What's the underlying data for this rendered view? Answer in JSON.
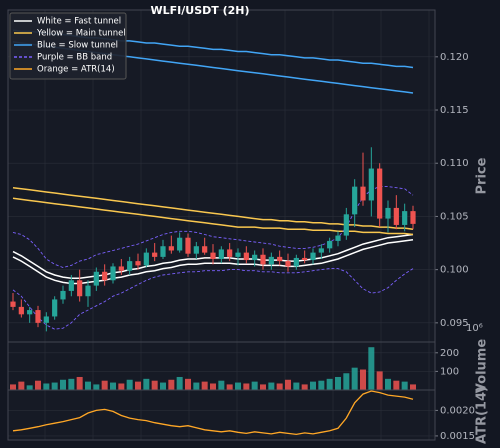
{
  "chart_data": [
    {
      "type": "candlestick",
      "title": "WLFI/USDT (2H)",
      "y_label": "Price",
      "grid": true,
      "legend": "upper left",
      "up_color": "#26a69a",
      "down_color": "#ef5350",
      "ylim": [
        0.0932,
        0.1244
      ],
      "yticks": [
        0.095,
        {
          "value": 0.1,
          "label": "0.100"
        },
        0.105,
        {
          "value": 0.11,
          "label": "0.110"
        },
        0.115,
        {
          "value": 0.12,
          "label": "0.120"
        }
      ],
      "open": [
        0.097,
        0.0965,
        0.0958,
        0.0962,
        0.095,
        0.0956,
        0.0972,
        0.098,
        0.099,
        0.0975,
        0.0985,
        0.0998,
        0.099,
        0.1003,
        0.0999,
        0.1008,
        0.1004,
        0.1016,
        0.1012,
        0.1022,
        0.1018,
        0.103,
        0.1015,
        0.1022,
        0.1016,
        0.101,
        0.1019,
        0.1012,
        0.1016,
        0.1009,
        0.1014,
        0.1005,
        0.1012,
        0.1008,
        0.1003,
        0.1011,
        0.1009,
        0.1016,
        0.102,
        0.1027,
        0.1032,
        0.1052,
        0.1078,
        0.1065,
        0.1095,
        0.1048,
        0.1058,
        0.1042,
        0.1055
      ],
      "high": [
        0.0978,
        0.0972,
        0.0965,
        0.0966,
        0.096,
        0.0975,
        0.0985,
        0.0995,
        0.1,
        0.099,
        0.1002,
        0.1005,
        0.1006,
        0.101,
        0.1012,
        0.1015,
        0.102,
        0.1025,
        0.1028,
        0.1032,
        0.1035,
        0.1034,
        0.1026,
        0.103,
        0.1024,
        0.1022,
        0.1025,
        0.102,
        0.1022,
        0.1018,
        0.102,
        0.1016,
        0.1018,
        0.1015,
        0.1014,
        0.1018,
        0.102,
        0.1024,
        0.103,
        0.1036,
        0.1058,
        0.1085,
        0.111,
        0.1115,
        0.11,
        0.1065,
        0.107,
        0.1062,
        0.106
      ],
      "low": [
        0.0962,
        0.0955,
        0.095,
        0.0946,
        0.0942,
        0.0953,
        0.0968,
        0.0975,
        0.097,
        0.0965,
        0.098,
        0.0985,
        0.0987,
        0.0995,
        0.0995,
        0.1,
        0.1002,
        0.1008,
        0.101,
        0.1015,
        0.1016,
        0.1012,
        0.101,
        0.1014,
        0.1005,
        0.1006,
        0.1008,
        0.1004,
        0.1006,
        0.1003,
        0.1,
        0.1,
        0.1004,
        0.0998,
        0.1,
        0.1006,
        0.1005,
        0.101,
        0.1016,
        0.1022,
        0.1028,
        0.104,
        0.106,
        0.105,
        0.104,
        0.1035,
        0.1038,
        0.1036,
        0.1038
      ],
      "close": [
        0.0965,
        0.0958,
        0.0962,
        0.095,
        0.0956,
        0.0972,
        0.098,
        0.099,
        0.0975,
        0.0985,
        0.0998,
        0.099,
        0.1003,
        0.0999,
        0.1008,
        0.1004,
        0.1016,
        0.1012,
        0.1022,
        0.1018,
        0.103,
        0.1015,
        0.1022,
        0.1016,
        0.101,
        0.1019,
        0.1012,
        0.1016,
        0.1009,
        0.1014,
        0.1005,
        0.1012,
        0.1008,
        0.1003,
        0.1011,
        0.1009,
        0.1016,
        0.102,
        0.1027,
        0.1032,
        0.1052,
        0.1078,
        0.1065,
        0.1095,
        0.1048,
        0.1058,
        0.1042,
        0.1055,
        0.1043
      ],
      "series": [
        {
          "name": "White = Fast tunnel",
          "color": "#ffffff",
          "dashed": false,
          "upper": [
            0.1017,
            0.1013,
            0.1008,
            0.1003,
            0.0998,
            0.0995,
            0.0993,
            0.0992,
            0.0992,
            0.0993,
            0.0994,
            0.0995,
            0.0997,
            0.0998,
            0.1,
            0.1001,
            0.1003,
            0.1004,
            0.1006,
            0.1007,
            0.1009,
            0.101,
            0.101,
            0.1011,
            0.1011,
            0.1011,
            0.1011,
            0.101,
            0.101,
            0.101,
            0.1009,
            0.1009,
            0.1009,
            0.1008,
            0.1008,
            0.1009,
            0.101,
            0.1011,
            0.1013,
            0.1015,
            0.1018,
            0.1021,
            0.1024,
            0.1026,
            0.1028,
            0.103,
            0.1031,
            0.1032,
            0.1033
          ],
          "lower": [
            0.1012,
            0.1008,
            0.1003,
            0.0998,
            0.0993,
            0.099,
            0.0988,
            0.0987,
            0.0987,
            0.0988,
            0.0989,
            0.099,
            0.0992,
            0.0993,
            0.0995,
            0.0996,
            0.0998,
            0.0999,
            0.1001,
            0.1002,
            0.1004,
            0.1005,
            0.1005,
            0.1006,
            0.1006,
            0.1006,
            0.1006,
            0.1005,
            0.1005,
            0.1005,
            0.1004,
            0.1004,
            0.1004,
            0.1003,
            0.1003,
            0.1004,
            0.1005,
            0.1006,
            0.1008,
            0.101,
            0.1013,
            0.1016,
            0.1019,
            0.1021,
            0.1023,
            0.1025,
            0.1026,
            0.1027,
            0.1028
          ]
        },
        {
          "name": "Yellow = Main tunnel",
          "color": "#f9c74f",
          "dashed": false,
          "upper": [
            0.1077,
            0.1076,
            0.1075,
            0.1074,
            0.1073,
            0.1072,
            0.1071,
            0.107,
            0.1069,
            0.1068,
            0.1067,
            0.1066,
            0.1065,
            0.1064,
            0.1063,
            0.1062,
            0.1061,
            0.106,
            0.1059,
            0.1058,
            0.1057,
            0.1056,
            0.1055,
            0.1054,
            0.1053,
            0.1052,
            0.1051,
            0.105,
            0.1049,
            0.1048,
            0.1047,
            0.1047,
            0.1046,
            0.1046,
            0.1045,
            0.1045,
            0.1044,
            0.1044,
            0.1043,
            0.1043,
            0.1042,
            0.1042,
            0.1041,
            0.1041,
            0.104,
            0.104,
            0.1039,
            0.1039,
            0.1038
          ],
          "lower": [
            0.1067,
            0.1066,
            0.1065,
            0.1064,
            0.1063,
            0.1062,
            0.1061,
            0.106,
            0.1059,
            0.1058,
            0.1057,
            0.1056,
            0.1055,
            0.1054,
            0.1053,
            0.1052,
            0.1051,
            0.105,
            0.1049,
            0.1048,
            0.1047,
            0.1046,
            0.1045,
            0.1044,
            0.1043,
            0.1042,
            0.1041,
            0.104,
            0.104,
            0.104,
            0.1039,
            0.1039,
            0.1039,
            0.1038,
            0.1038,
            0.1038,
            0.1037,
            0.1037,
            0.1037,
            0.1036,
            0.1036,
            0.1036,
            0.1035,
            0.1035,
            0.1035,
            0.1034,
            0.1034,
            0.1034,
            0.1033
          ]
        },
        {
          "name": "Blue = Slow tunnel",
          "color": "#42a5f5",
          "dashed": false,
          "upper": [
            0.1225,
            0.1224,
            0.1224,
            0.1223,
            0.1222,
            0.1221,
            0.1221,
            0.122,
            0.1219,
            0.1218,
            0.1218,
            0.1217,
            0.1216,
            0.1215,
            0.1215,
            0.1214,
            0.1213,
            0.1213,
            0.1212,
            0.1211,
            0.121,
            0.121,
            0.1209,
            0.1208,
            0.1207,
            0.1207,
            0.1206,
            0.1205,
            0.1205,
            0.1204,
            0.1203,
            0.1202,
            0.1202,
            0.1201,
            0.12,
            0.1199,
            0.1199,
            0.1198,
            0.1197,
            0.1197,
            0.1196,
            0.1195,
            0.1194,
            0.1194,
            0.1193,
            0.1192,
            0.1191,
            0.1191,
            0.119
          ],
          "lower": [
            0.1214,
            0.1213,
            0.1212,
            0.1211,
            0.121,
            0.1209,
            0.1208,
            0.1207,
            0.1206,
            0.1205,
            0.1204,
            0.1203,
            0.1202,
            0.1201,
            0.12,
            0.1199,
            0.1198,
            0.1197,
            0.1196,
            0.1195,
            0.1194,
            0.1193,
            0.1192,
            0.1191,
            0.119,
            0.1189,
            0.1188,
            0.1187,
            0.1186,
            0.1185,
            0.1184,
            0.1183,
            0.1182,
            0.1181,
            0.118,
            0.1179,
            0.1178,
            0.1177,
            0.1176,
            0.1175,
            0.1174,
            0.1173,
            0.1172,
            0.1171,
            0.117,
            0.1169,
            0.1168,
            0.1167,
            0.1166
          ]
        },
        {
          "name": "Purple = BB band",
          "color": "#7b61ff",
          "dashed": true,
          "upper": [
            0.1035,
            0.1033,
            0.1028,
            0.102,
            0.101,
            0.1005,
            0.1002,
            0.1004,
            0.1008,
            0.101,
            0.1014,
            0.1016,
            0.1018,
            0.102,
            0.1022,
            0.1024,
            0.1027,
            0.103,
            0.1033,
            0.1035,
            0.1036,
            0.1036,
            0.1035,
            0.1033,
            0.1031,
            0.103,
            0.1029,
            0.1028,
            0.1027,
            0.1026,
            0.1025,
            0.1024,
            0.1022,
            0.1021,
            0.102,
            0.102,
            0.1021,
            0.1023,
            0.1026,
            0.103,
            0.104,
            0.1055,
            0.1068,
            0.1075,
            0.1078,
            0.1078,
            0.1077,
            0.1076,
            0.107
          ],
          "lower": [
            0.0981,
            0.0975,
            0.0965,
            0.0955,
            0.0948,
            0.0944,
            0.0945,
            0.095,
            0.0958,
            0.0962,
            0.0966,
            0.097,
            0.0975,
            0.0978,
            0.0982,
            0.0986,
            0.099,
            0.0993,
            0.0995,
            0.0996,
            0.0997,
            0.0998,
            0.0998,
            0.0999,
            0.0999,
            0.0999,
            0.1,
            0.1,
            0.0999,
            0.0999,
            0.0998,
            0.0998,
            0.0997,
            0.0997,
            0.0997,
            0.0998,
            0.0999,
            0.1,
            0.1001,
            0.1001,
            0.0998,
            0.099,
            0.0982,
            0.0978,
            0.0979,
            0.0983,
            0.099,
            0.0996,
            0.1001
          ]
        }
      ]
    },
    {
      "type": "bar",
      "y_label": "Volume",
      "offset_label": "10⁶",
      "grid": true,
      "ylim": [
        0,
        258
      ],
      "yticks": [
        100,
        200
      ],
      "values": [
        30,
        45,
        25,
        50,
        35,
        40,
        55,
        60,
        70,
        45,
        30,
        50,
        40,
        35,
        55,
        45,
        60,
        50,
        40,
        55,
        70,
        60,
        40,
        45,
        35,
        50,
        30,
        40,
        35,
        45,
        30,
        40,
        35,
        55,
        40,
        30,
        45,
        50,
        60,
        70,
        90,
        120,
        110,
        230,
        100,
        60,
        50,
        45,
        30
      ]
    },
    {
      "type": "line",
      "y_label": "ATR(14)",
      "grid": true,
      "ylim": [
        0.00142,
        0.0024
      ],
      "yticks": [
        {
          "value": 0.0015,
          "label": "0.0015"
        },
        {
          "value": 0.002,
          "label": "0.0020"
        }
      ],
      "series": [
        {
          "name": "Orange = ATR(14)",
          "color": "#ffa726",
          "values": [
            0.0016,
            0.00162,
            0.00165,
            0.00168,
            0.00172,
            0.00175,
            0.00178,
            0.00182,
            0.00186,
            0.00195,
            0.002,
            0.00202,
            0.00198,
            0.0019,
            0.00185,
            0.00182,
            0.0018,
            0.00176,
            0.00173,
            0.0017,
            0.00168,
            0.0017,
            0.00166,
            0.00162,
            0.0016,
            0.00158,
            0.0016,
            0.00157,
            0.00155,
            0.00158,
            0.00156,
            0.00154,
            0.00157,
            0.00155,
            0.00153,
            0.00156,
            0.00154,
            0.00157,
            0.0016,
            0.00165,
            0.00185,
            0.00215,
            0.00232,
            0.00238,
            0.00235,
            0.0023,
            0.00228,
            0.00226,
            0.00222
          ]
        }
      ]
    }
  ]
}
